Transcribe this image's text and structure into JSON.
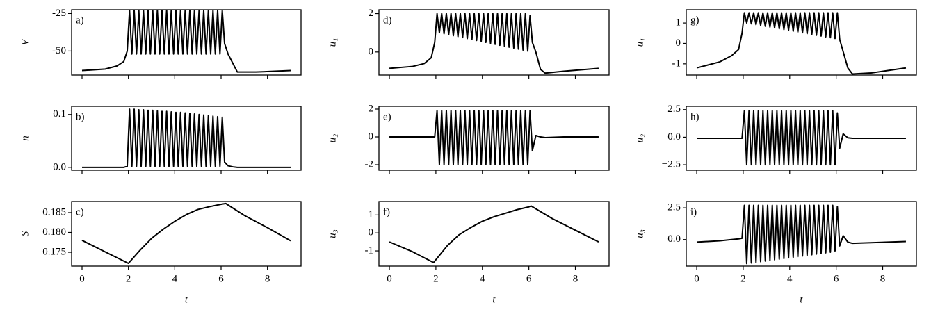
{
  "chart_data": [
    {
      "type": "line",
      "panel_label": "a)",
      "ylabel": "V",
      "color": "#000000",
      "x": [
        0,
        1,
        1.5,
        1.8,
        1.95,
        2.05,
        2.15,
        2.25,
        2.35,
        2.45,
        2.55,
        2.65,
        2.75,
        2.85,
        2.95,
        3.05,
        3.15,
        3.25,
        3.35,
        3.45,
        3.55,
        3.65,
        3.75,
        3.85,
        3.95,
        4.05,
        4.15,
        4.25,
        4.35,
        4.45,
        4.55,
        4.65,
        4.75,
        4.85,
        4.95,
        5.05,
        5.15,
        5.25,
        5.35,
        5.45,
        5.55,
        5.65,
        5.75,
        5.85,
        5.95,
        6.05,
        6.15,
        6.3,
        6.5,
        6.7,
        7.5,
        9
      ],
      "values": [
        -63,
        -62,
        -60,
        -57,
        -50,
        -23,
        -52,
        -23,
        -52,
        -23,
        -52,
        -23,
        -52,
        -23,
        -52,
        -23,
        -52,
        -23,
        -52,
        -23,
        -52,
        -23,
        -52,
        -23,
        -52,
        -23,
        -52,
        -23,
        -52,
        -23,
        -52,
        -23,
        -52,
        -23,
        -52,
        -23,
        -52,
        -23,
        -52,
        -23,
        -52,
        -23,
        -52,
        -23,
        -52,
        -23,
        -45,
        -52,
        -58,
        -64,
        -64,
        -63
      ],
      "xlim": [
        -0.45,
        9.45
      ],
      "ylim": [
        -66,
        -22.5
      ],
      "xticks": [
        0,
        2,
        4,
        6,
        8
      ],
      "yticks": [
        -50,
        -25
      ]
    },
    {
      "type": "line",
      "panel_label": "b)",
      "ylabel": "n",
      "color": "#000000",
      "x": [
        0,
        1,
        1.5,
        1.8,
        1.95,
        2.05,
        2.15,
        2.25,
        2.35,
        2.45,
        2.55,
        2.65,
        2.75,
        2.85,
        2.95,
        3.05,
        3.15,
        3.25,
        3.35,
        3.45,
        3.55,
        3.65,
        3.75,
        3.85,
        3.95,
        4.05,
        4.15,
        4.25,
        4.35,
        4.45,
        4.55,
        4.65,
        4.75,
        4.85,
        4.95,
        5.05,
        5.15,
        5.25,
        5.35,
        5.45,
        5.55,
        5.65,
        5.75,
        5.85,
        5.95,
        6.05,
        6.15,
        6.3,
        6.5,
        6.7,
        7.5,
        9
      ],
      "values": [
        0,
        0,
        0,
        0,
        0.002,
        0.11,
        0.002,
        0.11,
        0.002,
        0.109,
        0.002,
        0.109,
        0.002,
        0.108,
        0.002,
        0.108,
        0.002,
        0.107,
        0.002,
        0.106,
        0.002,
        0.106,
        0.002,
        0.105,
        0.002,
        0.104,
        0.002,
        0.104,
        0.002,
        0.103,
        0.002,
        0.102,
        0.002,
        0.101,
        0.002,
        0.1,
        0.002,
        0.099,
        0.002,
        0.098,
        0.002,
        0.097,
        0.002,
        0.096,
        0.002,
        0.095,
        0.01,
        0.003,
        0.001,
        0,
        0,
        0
      ],
      "xlim": [
        -0.45,
        9.45
      ],
      "ylim": [
        -0.0055,
        0.1155
      ],
      "xticks": [
        0,
        2,
        4,
        6,
        8
      ],
      "yticks": [
        {
          "value": 0,
          "label": "0.0"
        },
        0.1
      ]
    },
    {
      "type": "line",
      "panel_label": "c)",
      "ylabel": "S",
      "xlabel": "t",
      "color": "#000000",
      "x": [
        0,
        1,
        2,
        2.5,
        3,
        3.5,
        4,
        4.5,
        5,
        5.5,
        6,
        6.2,
        7,
        8,
        9
      ],
      "values": [
        0.178,
        0.1751,
        0.1722,
        0.1755,
        0.1785,
        0.1808,
        0.1828,
        0.1845,
        0.1858,
        0.1865,
        0.1871,
        0.1873,
        0.1843,
        0.1812,
        0.1779
      ],
      "xlim": [
        -0.45,
        9.45
      ],
      "ylim": [
        0.1715,
        0.1878
      ],
      "xticks": [
        0,
        2,
        4,
        6,
        8
      ],
      "yticks": [
        0.175,
        {
          "value": 0.18,
          "label": "0.180"
        },
        0.185
      ]
    },
    {
      "type": "line",
      "panel_label": "d)",
      "ylabel": "u₁",
      "color": "#000000",
      "x": [
        0,
        1,
        1.5,
        1.8,
        1.95,
        2.05,
        2.15,
        2.25,
        2.35,
        2.45,
        2.55,
        2.65,
        2.75,
        2.85,
        2.95,
        3.05,
        3.15,
        3.25,
        3.35,
        3.45,
        3.55,
        3.65,
        3.75,
        3.85,
        3.95,
        4.05,
        4.15,
        4.25,
        4.35,
        4.45,
        4.55,
        4.65,
        4.75,
        4.85,
        4.95,
        5.05,
        5.15,
        5.25,
        5.35,
        5.45,
        5.55,
        5.65,
        5.75,
        5.85,
        5.95,
        6.05,
        6.15,
        6.3,
        6.5,
        6.7,
        7.5,
        9
      ],
      "values": [
        -0.85,
        -0.75,
        -0.6,
        -0.3,
        0.5,
        2,
        1,
        2,
        0.95,
        2,
        0.9,
        2,
        0.85,
        2,
        0.8,
        2,
        0.75,
        2,
        0.7,
        2,
        0.65,
        2,
        0.6,
        2,
        0.55,
        2,
        0.5,
        2,
        0.45,
        2,
        0.4,
        2,
        0.35,
        2,
        0.3,
        2,
        0.25,
        2,
        0.2,
        2,
        0.15,
        2,
        0.1,
        2,
        0.05,
        1.9,
        0.5,
        0,
        -0.9,
        -1.1,
        -1,
        -0.85
      ],
      "xlim": [
        -0.45,
        9.45
      ],
      "ylim": [
        -1.2,
        2.2
      ],
      "xticks": [
        0,
        2,
        4,
        6,
        8
      ],
      "yticks": [
        0,
        2
      ]
    },
    {
      "type": "line",
      "panel_label": "e)",
      "ylabel": "u₂",
      "color": "#000000",
      "x": [
        0,
        1,
        1.5,
        1.8,
        1.95,
        2.05,
        2.15,
        2.25,
        2.35,
        2.45,
        2.55,
        2.65,
        2.75,
        2.85,
        2.95,
        3.05,
        3.15,
        3.25,
        3.35,
        3.45,
        3.55,
        3.65,
        3.75,
        3.85,
        3.95,
        4.05,
        4.15,
        4.25,
        4.35,
        4.45,
        4.55,
        4.65,
        4.75,
        4.85,
        4.95,
        5.05,
        5.15,
        5.25,
        5.35,
        5.45,
        5.55,
        5.65,
        5.75,
        5.85,
        5.95,
        6.05,
        6.15,
        6.3,
        6.5,
        6.7,
        7.5,
        9
      ],
      "values": [
        0,
        0,
        0,
        0,
        0,
        1.9,
        -2,
        1.9,
        -2,
        1.9,
        -2,
        1.9,
        -2,
        1.9,
        -2,
        1.9,
        -2,
        1.9,
        -2,
        1.9,
        -2,
        1.9,
        -2,
        1.9,
        -2,
        1.9,
        -2,
        1.9,
        -2,
        1.9,
        -2,
        1.9,
        -2,
        1.9,
        -2,
        1.9,
        -2,
        1.9,
        -2,
        1.9,
        -2,
        1.9,
        -2,
        1.9,
        -2,
        1.9,
        -1,
        0.1,
        0,
        -0.05,
        0,
        0
      ],
      "xlim": [
        -0.45,
        9.45
      ],
      "ylim": [
        -2.4,
        2.2
      ],
      "xticks": [
        0,
        2,
        4,
        6,
        8
      ],
      "yticks": [
        -2,
        0,
        2
      ]
    },
    {
      "type": "line",
      "panel_label": "f)",
      "ylabel": "u₃",
      "xlabel": "t",
      "color": "#000000",
      "x": [
        0,
        1,
        1.9,
        2.5,
        3,
        3.5,
        4,
        4.5,
        5,
        5.5,
        6,
        6.1,
        7,
        8,
        9
      ],
      "values": [
        -0.5,
        -1.05,
        -1.65,
        -0.7,
        -0.1,
        0.3,
        0.65,
        0.9,
        1.1,
        1.3,
        1.45,
        1.5,
        0.8,
        0.15,
        -0.5
      ],
      "xlim": [
        -0.45,
        9.45
      ],
      "ylim": [
        -1.85,
        1.75
      ],
      "xticks": [
        0,
        2,
        4,
        6,
        8
      ],
      "yticks": [
        -1,
        0,
        1
      ]
    },
    {
      "type": "line",
      "panel_label": "g)",
      "ylabel": "u₁",
      "color": "#000000",
      "x": [
        0,
        1,
        1.5,
        1.8,
        1.95,
        2.05,
        2.15,
        2.25,
        2.35,
        2.45,
        2.55,
        2.65,
        2.75,
        2.85,
        2.95,
        3.05,
        3.15,
        3.25,
        3.35,
        3.45,
        3.55,
        3.65,
        3.75,
        3.85,
        3.95,
        4.05,
        4.15,
        4.25,
        4.35,
        4.45,
        4.55,
        4.65,
        4.75,
        4.85,
        4.95,
        5.05,
        5.15,
        5.25,
        5.35,
        5.45,
        5.55,
        5.65,
        5.75,
        5.85,
        5.95,
        6.05,
        6.15,
        6.3,
        6.5,
        6.7,
        7.5,
        9
      ],
      "values": [
        -1.2,
        -0.9,
        -0.6,
        -0.3,
        0.5,
        1.5,
        1,
        1.5,
        0.96,
        1.5,
        0.92,
        1.5,
        0.88,
        1.5,
        0.84,
        1.5,
        0.8,
        1.5,
        0.76,
        1.5,
        0.72,
        1.5,
        0.68,
        1.5,
        0.64,
        1.5,
        0.6,
        1.5,
        0.56,
        1.5,
        0.52,
        1.5,
        0.48,
        1.5,
        0.44,
        1.5,
        0.4,
        1.5,
        0.36,
        1.5,
        0.32,
        1.5,
        0.28,
        1.5,
        0.24,
        1.5,
        0.2,
        -0.4,
        -1.2,
        -1.5,
        -1.45,
        -1.2
      ],
      "xlim": [
        -0.45,
        9.45
      ],
      "ylim": [
        -1.55,
        1.65
      ],
      "xticks": [
        0,
        2,
        4,
        6,
        8
      ],
      "yticks": [
        -1,
        0,
        1
      ]
    },
    {
      "type": "line",
      "panel_label": "h)",
      "ylabel": "u₂",
      "color": "#000000",
      "x": [
        0,
        1,
        1.5,
        1.8,
        1.95,
        2.05,
        2.15,
        2.25,
        2.35,
        2.45,
        2.55,
        2.65,
        2.75,
        2.85,
        2.95,
        3.05,
        3.15,
        3.25,
        3.35,
        3.45,
        3.55,
        3.65,
        3.75,
        3.85,
        3.95,
        4.05,
        4.15,
        4.25,
        4.35,
        4.45,
        4.55,
        4.65,
        4.75,
        4.85,
        4.95,
        5.05,
        5.15,
        5.25,
        5.35,
        5.45,
        5.55,
        5.65,
        5.75,
        5.85,
        5.95,
        6.05,
        6.15,
        6.3,
        6.5,
        6.7,
        7.5,
        9
      ],
      "values": [
        -0.1,
        -0.1,
        -0.1,
        -0.1,
        -0.1,
        2.4,
        -2.5,
        2.4,
        -2.5,
        2.4,
        -2.5,
        2.4,
        -2.5,
        2.4,
        -2.5,
        2.4,
        -2.5,
        2.4,
        -2.5,
        2.4,
        -2.5,
        2.4,
        -2.5,
        2.4,
        -2.5,
        2.4,
        -2.5,
        2.4,
        -2.5,
        2.4,
        -2.5,
        2.4,
        -2.5,
        2.4,
        -2.5,
        2.4,
        -2.5,
        2.4,
        -2.5,
        2.4,
        -2.5,
        2.4,
        -2.5,
        2.4,
        -2.5,
        2.2,
        -1,
        0.3,
        -0.05,
        -0.1,
        -0.1,
        -0.1
      ],
      "xlim": [
        -0.45,
        9.45
      ],
      "ylim": [
        -3.0,
        2.8
      ],
      "xticks": [
        0,
        2,
        4,
        6,
        8
      ],
      "yticks": [
        {
          "value": -2.5,
          "label": "−2.5"
        },
        {
          "value": 0,
          "label": "0.0"
        },
        2.5
      ]
    },
    {
      "type": "line",
      "panel_label": "i)",
      "ylabel": "u₃",
      "xlabel": "t",
      "color": "#000000",
      "x": [
        0,
        1,
        1.5,
        1.8,
        1.95,
        2.05,
        2.15,
        2.25,
        2.35,
        2.45,
        2.55,
        2.65,
        2.75,
        2.85,
        2.95,
        3.05,
        3.15,
        3.25,
        3.35,
        3.45,
        3.55,
        3.65,
        3.75,
        3.85,
        3.95,
        4.05,
        4.15,
        4.25,
        4.35,
        4.45,
        4.55,
        4.65,
        4.75,
        4.85,
        4.95,
        5.05,
        5.15,
        5.25,
        5.35,
        5.45,
        5.55,
        5.65,
        5.75,
        5.85,
        5.95,
        6.05,
        6.15,
        6.3,
        6.5,
        6.7,
        7.5,
        9
      ],
      "values": [
        -0.2,
        -0.1,
        0,
        0.05,
        0.1,
        2.7,
        -1.9,
        2.7,
        -1.85,
        2.7,
        -1.8,
        2.7,
        -1.75,
        2.7,
        -1.7,
        2.7,
        -1.65,
        2.7,
        -1.6,
        2.7,
        -1.55,
        2.7,
        -1.5,
        2.7,
        -1.45,
        2.7,
        -1.4,
        2.7,
        -1.35,
        2.7,
        -1.3,
        2.7,
        -1.25,
        2.7,
        -1.2,
        2.7,
        -1.15,
        2.7,
        -1.1,
        2.7,
        -1.05,
        2.7,
        -1,
        2.7,
        -0.9,
        2.6,
        -0.5,
        0.3,
        -0.2,
        -0.3,
        -0.25,
        -0.15
      ],
      "xlim": [
        -0.45,
        9.45
      ],
      "ylim": [
        -2.1,
        3.0
      ],
      "xticks": [
        0,
        2,
        4,
        6,
        8
      ],
      "yticks": [
        {
          "value": 0,
          "label": "0.0"
        },
        2.5
      ]
    }
  ]
}
